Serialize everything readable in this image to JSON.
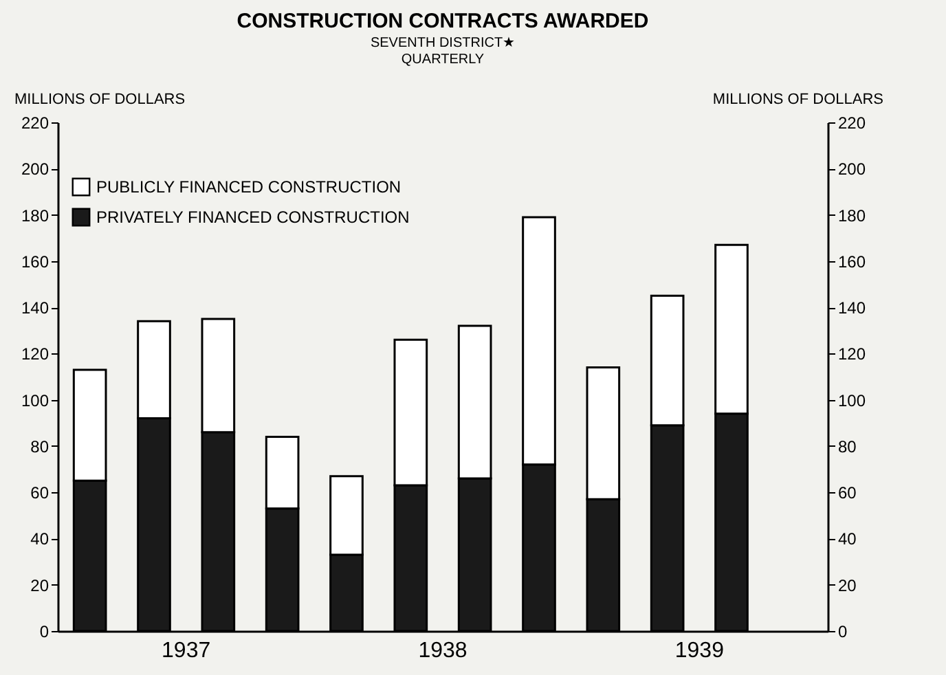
{
  "chart_data": {
    "type": "bar",
    "title": "CONSTRUCTION CONTRACTS AWARDED",
    "subtitle": "SEVENTH DISTRICT★\nQUARTERLY",
    "ylabel": "MILLIONS OF DOLLARS",
    "y2label": "MILLIONS OF DOLLARS",
    "categories": [
      null,
      null,
      null,
      null,
      null,
      null,
      null,
      null,
      null,
      null,
      null,
      null
    ],
    "stacked": true,
    "series": [
      {
        "name": "PRIVATELY FINANCED CONSTRUCTION",
        "color": "#1a1a1a",
        "values": [
          65,
          92,
          86,
          53,
          33,
          63,
          66,
          72,
          57,
          89,
          94,
          null
        ]
      },
      {
        "name": "PUBLICLY FINANCED CONSTRUCTION",
        "color": "#ffffff",
        "values": [
          48,
          42,
          49,
          31,
          34,
          63,
          66,
          107,
          57,
          56,
          73,
          null
        ]
      }
    ],
    "ylim": [
      0,
      220
    ],
    "yticks": [
      0,
      20,
      40,
      60,
      80,
      100,
      120,
      140,
      160,
      180,
      200,
      220
    ],
    "y2lim": [
      0,
      220
    ],
    "y2ticks": [
      0,
      20,
      40,
      60,
      80,
      100,
      120,
      140,
      160,
      180,
      200,
      220
    ],
    "annotations": [
      "1937",
      "1938",
      "1939"
    ],
    "legend": "top left",
    "grid": false
  }
}
